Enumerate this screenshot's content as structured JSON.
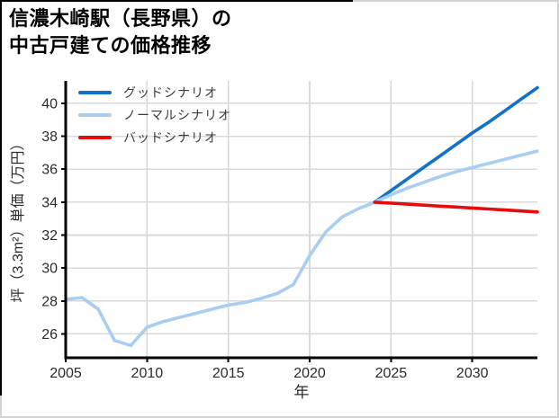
{
  "title": {
    "line1": "信濃木崎駅（長野県）の",
    "line2": "中古戸建ての価格推移"
  },
  "colors": {
    "good": "#1172c8",
    "normal": "#a9cef2",
    "bad": "#e80b0b",
    "grid": "#d9d9d9",
    "spine": "#000000",
    "tick_text": "#2b2b2b",
    "frame_grey": "#d4d4d4",
    "frame_black": "#000000"
  },
  "chart_data": {
    "type": "line",
    "title": "信濃木崎駅（長野県）の中古戸建ての価格推移",
    "xlabel": "年",
    "ylabel": "坪（3.3m²）単価（万円）",
    "xlim": [
      2005,
      2034
    ],
    "ylim": [
      24.55,
      41.36
    ],
    "x_ticks": [
      2005,
      2010,
      2015,
      2020,
      2025,
      2030
    ],
    "y_ticks": [
      26,
      28,
      30,
      32,
      34,
      36,
      38,
      40
    ],
    "grid": true,
    "legend_position": "upper-left",
    "legend": [
      {
        "label": "グッドシナリオ",
        "color": "#1172c8"
      },
      {
        "label": "ノーマルシナリオ",
        "color": "#a9cef2"
      },
      {
        "label": "バッドシナリオ",
        "color": "#e80b0b"
      }
    ],
    "series": [
      {
        "name": "history-actual",
        "color": "#a9cef2",
        "x": [
          2005,
          2006,
          2007,
          2008,
          2009,
          2010,
          2011,
          2012,
          2013,
          2014,
          2015,
          2016,
          2017,
          2018,
          2019,
          2020,
          2021,
          2022,
          2023,
          2024
        ],
        "values": [
          28.1,
          28.2,
          27.5,
          25.6,
          25.3,
          26.4,
          26.75,
          27.0,
          27.25,
          27.5,
          27.75,
          27.9,
          28.15,
          28.45,
          29.0,
          30.75,
          32.2,
          33.1,
          33.6,
          34.0
        ]
      },
      {
        "name": "good-scenario",
        "color": "#1172c8",
        "x": [
          2024,
          2025,
          2026,
          2027,
          2028,
          2029,
          2030,
          2031,
          2032,
          2033,
          2034
        ],
        "values": [
          34.0,
          34.7,
          35.4,
          36.1,
          36.8,
          37.5,
          38.2,
          38.85,
          39.55,
          40.25,
          40.95
        ]
      },
      {
        "name": "normal-scenario",
        "color": "#a9cef2",
        "x": [
          2024,
          2025,
          2026,
          2027,
          2028,
          2029,
          2030,
          2031,
          2032,
          2033,
          2034
        ],
        "values": [
          34.0,
          34.45,
          34.85,
          35.2,
          35.55,
          35.85,
          36.1,
          36.35,
          36.6,
          36.85,
          37.1
        ]
      },
      {
        "name": "bad-scenario",
        "color": "#e80b0b",
        "x": [
          2024,
          2025,
          2026,
          2027,
          2028,
          2029,
          2030,
          2031,
          2032,
          2033,
          2034
        ],
        "values": [
          34.0,
          33.94,
          33.88,
          33.82,
          33.76,
          33.7,
          33.64,
          33.58,
          33.52,
          33.46,
          33.4
        ]
      }
    ]
  }
}
